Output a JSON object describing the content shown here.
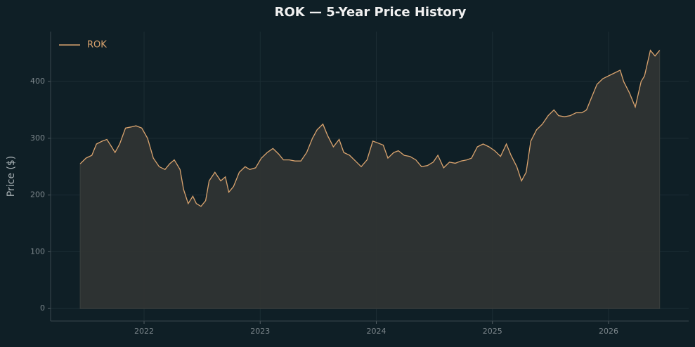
{
  "chart_data": {
    "type": "area-line",
    "title": "ROK — 5-Year Price History",
    "ylabel": "Price ($)",
    "legend": "upper left",
    "grid": true,
    "xlim": [
      2021.195,
      2026.69
    ],
    "ylim": [
      -22,
      488
    ],
    "xticks": [
      2022,
      2023,
      2024,
      2025,
      2026
    ],
    "yticks": [
      0,
      100,
      200,
      300,
      400
    ],
    "x": [
      2021.45,
      2021.5,
      2021.55,
      2021.59,
      2021.64,
      2021.68,
      2021.72,
      2021.75,
      2021.79,
      2021.84,
      2021.89,
      2021.93,
      2021.98,
      2022.03,
      2022.08,
      2022.13,
      2022.18,
      2022.22,
      2022.26,
      2022.31,
      2022.34,
      2022.38,
      2022.42,
      2022.45,
      2022.49,
      2022.53,
      2022.56,
      2022.61,
      2022.66,
      2022.7,
      2022.73,
      2022.77,
      2022.82,
      2022.87,
      2022.91,
      2022.96,
      2023.01,
      2023.06,
      2023.11,
      2023.16,
      2023.2,
      2023.25,
      2023.3,
      2023.35,
      2023.4,
      2023.45,
      2023.49,
      2023.54,
      2023.58,
      2023.63,
      2023.68,
      2023.72,
      2023.77,
      2023.82,
      2023.87,
      2023.92,
      2023.97,
      2024.01,
      2024.06,
      2024.1,
      2024.15,
      2024.19,
      2024.24,
      2024.29,
      2024.34,
      2024.39,
      2024.44,
      2024.49,
      2024.53,
      2024.58,
      2024.63,
      2024.68,
      2024.73,
      2024.78,
      2024.82,
      2024.87,
      2024.92,
      2024.97,
      2025.02,
      2025.07,
      2025.12,
      2025.16,
      2025.21,
      2025.25,
      2025.29,
      2025.33,
      2025.38,
      2025.43,
      2025.48,
      2025.53,
      2025.57,
      2025.62,
      2025.67,
      2025.72,
      2025.77,
      2025.81,
      2025.85,
      2025.9,
      2025.95,
      2026.0,
      2026.05,
      2026.1,
      2026.13,
      2026.18,
      2026.23,
      2026.28,
      2026.31,
      2026.36,
      2026.4,
      2026.44
    ],
    "series": [
      {
        "name": "ROK",
        "color": "#d9a36e",
        "fill": "#2f3433",
        "values": [
          255,
          265,
          270,
          290,
          295,
          298,
          285,
          275,
          290,
          318,
          320,
          322,
          318,
          300,
          265,
          250,
          245,
          255,
          262,
          245,
          210,
          185,
          198,
          185,
          180,
          190,
          225,
          240,
          225,
          232,
          205,
          215,
          240,
          250,
          245,
          248,
          265,
          275,
          282,
          272,
          262,
          262,
          260,
          260,
          275,
          300,
          315,
          325,
          305,
          285,
          298,
          275,
          270,
          260,
          250,
          262,
          295,
          292,
          288,
          265,
          275,
          278,
          270,
          268,
          262,
          250,
          252,
          258,
          270,
          248,
          258,
          256,
          260,
          262,
          265,
          285,
          290,
          285,
          278,
          268,
          290,
          270,
          250,
          225,
          240,
          295,
          315,
          325,
          340,
          350,
          340,
          338,
          340,
          345,
          345,
          350,
          370,
          395,
          405,
          410,
          415,
          420,
          400,
          380,
          355,
          400,
          410,
          455,
          445,
          455
        ]
      }
    ]
  }
}
